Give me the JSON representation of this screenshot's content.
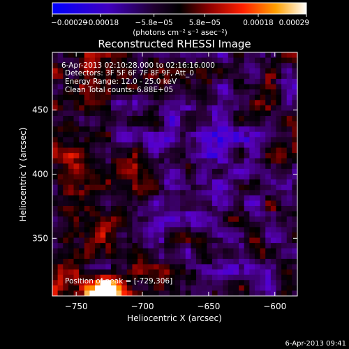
{
  "chart_data": {
    "type": "heatmap",
    "title": "Reconstructed RHESSI Image",
    "xlabel": "Heliocentric X (arcsec)",
    "ylabel": "Heliocentric Y (arcsec)",
    "xlim": [
      -768,
      -583
    ],
    "ylim": [
      305,
      495
    ],
    "x_ticks": [
      -750,
      -700,
      -650,
      -600
    ],
    "x_tick_labels": [
      "−750",
      "−700",
      "−650",
      "−600"
    ],
    "y_ticks": [
      350,
      400,
      450
    ],
    "y_tick_labels": [
      "350",
      "400",
      "450"
    ],
    "colorbar": {
      "range": [
        -0.00029,
        0.00029
      ],
      "ticks": [
        -0.00029,
        -0.00018,
        -5.8e-05,
        5.8e-05,
        0.00018,
        0.00029
      ],
      "tick_labels": [
        "−0.00029",
        "−0.00018",
        "−5.8e−05",
        "5.8e−05",
        "0.00018",
        "0.00029"
      ],
      "unit_label": "(photons cm⁻² s⁻¹ asec⁻²)",
      "colors": [
        "#0000ff",
        "#5a00c8",
        "#2a0038",
        "#000000",
        "#8a0000",
        "#ff2000",
        "#ff9a00",
        "#ffffff"
      ]
    },
    "annotations": [
      "6-Apr-2013 02:10:28.000 to 02:16:16.000",
      "Detectors: 3F 5F 6F 7F 8F 9F, Att_0",
      "Energy Range: 12.0 - 25.0 keV",
      "Clean    Total counts: 6.88E+05",
      "Position of peak = [-729,306]"
    ],
    "peak": {
      "x": -729,
      "y": 306
    },
    "image_grid": {
      "cols": 46,
      "rows": 46
    }
  },
  "footer": {
    "timestamp": "6-Apr-2013 09:41"
  }
}
